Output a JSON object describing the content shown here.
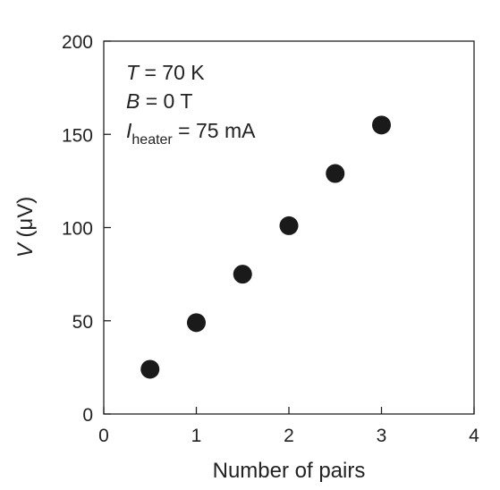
{
  "chart_data": {
    "type": "scatter",
    "xlabel": "Number of pairs",
    "ylabel": {
      "symbol": "V",
      "unit": " (μV)"
    },
    "xlim": [
      0,
      4
    ],
    "ylim": [
      0,
      200
    ],
    "x_ticks": [
      0,
      1,
      2,
      3,
      4
    ],
    "y_ticks": [
      0,
      50,
      100,
      150,
      200
    ],
    "grid": false,
    "series": [
      {
        "x": [
          0.5,
          1.0,
          1.5,
          2.0,
          2.5,
          3.0
        ],
        "y": [
          24,
          49,
          75,
          101,
          129,
          155
        ],
        "color": "#1a1a1a"
      }
    ],
    "annotations": {
      "temperature": {
        "symbol": "T",
        "text": " = 70 K"
      },
      "field": {
        "symbol": "B",
        "text": " = 0 T"
      },
      "current": {
        "symbol": "I",
        "subscript": "heater",
        "text": " = 75 mA"
      }
    }
  }
}
